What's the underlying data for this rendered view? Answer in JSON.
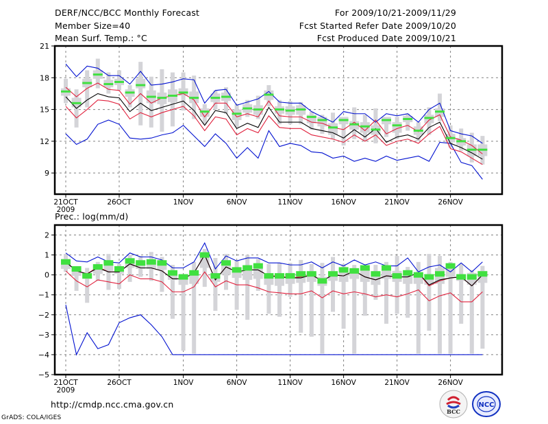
{
  "header": {
    "title": "DERF/NCC/BCC Monthly Forecast",
    "member_size": "Member Size=40",
    "variable_top": "Mean Surf. Temp.: °C",
    "period": "For 2009/10/21-2009/11/29",
    "started_date": "Fcst Started Refer Date 2009/10/20",
    "produced_date": "Fcst Produced Date 2009/10/21"
  },
  "footer": {
    "url": "http://cmdp.ncc.cma.gov.cn",
    "credit": "GrADS: COLA/IGES",
    "logos": [
      "BCC",
      "NCC"
    ]
  },
  "colors": {
    "mean": "#000000",
    "inner_band": "#e0203c",
    "outer_band": "#0010d0",
    "box": "#d4d4d8",
    "marker": "#40e040",
    "grid": "#808080"
  },
  "chart_data": [
    {
      "type": "line",
      "title": "Mean Surf. Temp.: °C",
      "xlabel": "",
      "ylabel": "°C",
      "ylim": [
        7,
        21
      ],
      "yticks": [
        9,
        12,
        15,
        18,
        21
      ],
      "xticks": [
        {
          "day": 0,
          "label": "21OCT",
          "sublabel": "2009"
        },
        {
          "day": 5,
          "label": "26OCT"
        },
        {
          "day": 11,
          "label": "1NOV"
        },
        {
          "day": 16,
          "label": "6NOV"
        },
        {
          "day": 21,
          "label": "11NOV"
        },
        {
          "day": 26,
          "label": "16NOV"
        },
        {
          "day": 31,
          "label": "21NOV"
        },
        {
          "day": 36,
          "label": "26NOV"
        }
      ],
      "grid": true,
      "x_days": 40,
      "series": [
        {
          "name": "max",
          "role": "outer_band",
          "values": [
            19.3,
            18.1,
            19.1,
            18.9,
            18.2,
            18.2,
            17.4,
            18.6,
            17.3,
            17.4,
            17.6,
            17.9,
            17.8,
            15.6,
            16.8,
            16.9,
            15.4,
            15.7,
            16.0,
            16.7,
            15.7,
            15.6,
            15.6,
            14.8,
            14.3,
            13.8,
            14.8,
            14.6,
            14.6,
            13.8,
            14.6,
            14.4,
            14.6,
            13.8,
            15.0,
            15.6,
            13.0,
            12.7,
            12.5,
            11.8
          ]
        },
        {
          "name": "upper",
          "role": "inner_band",
          "values": [
            17.1,
            16.2,
            17.0,
            17.5,
            16.9,
            16.8,
            15.5,
            16.5,
            15.6,
            16.1,
            16.3,
            16.5,
            15.9,
            14.3,
            15.6,
            15.6,
            14.3,
            14.6,
            14.3,
            15.8,
            14.4,
            14.3,
            14.3,
            13.8,
            13.7,
            13.3,
            13.1,
            13.8,
            13.0,
            14.0,
            12.7,
            13.2,
            13.5,
            12.9,
            14.0,
            14.5,
            12.4,
            12.1,
            11.6,
            10.8
          ]
        },
        {
          "name": "mean",
          "role": "mean",
          "values": [
            16.2,
            15.1,
            15.9,
            16.5,
            16.2,
            16.1,
            14.8,
            15.6,
            14.9,
            15.2,
            15.5,
            15.8,
            14.9,
            13.5,
            14.9,
            14.7,
            13.2,
            13.7,
            13.3,
            15.2,
            13.8,
            13.8,
            13.8,
            13.2,
            13.0,
            12.8,
            12.3,
            13.1,
            12.4,
            13.2,
            11.9,
            12.4,
            12.6,
            12.2,
            13.3,
            13.8,
            11.8,
            11.4,
            10.9,
            10.3
          ]
        },
        {
          "name": "lower",
          "role": "inner_band",
          "values": [
            15.3,
            14.2,
            15.0,
            15.9,
            15.8,
            15.5,
            14.1,
            14.7,
            14.3,
            14.7,
            15.0,
            15.3,
            14.4,
            13.0,
            14.3,
            14.1,
            12.6,
            13.2,
            12.8,
            14.4,
            13.3,
            13.2,
            13.2,
            12.6,
            12.4,
            12.2,
            11.9,
            12.6,
            12.0,
            12.6,
            11.6,
            12.0,
            12.2,
            11.8,
            12.7,
            13.4,
            11.3,
            11.0,
            10.4,
            9.8
          ]
        },
        {
          "name": "min",
          "role": "outer_band",
          "values": [
            12.7,
            11.7,
            12.2,
            13.6,
            14.0,
            13.6,
            12.3,
            12.2,
            12.3,
            12.6,
            12.8,
            13.5,
            12.5,
            11.5,
            12.7,
            11.8,
            10.4,
            11.4,
            10.4,
            13.0,
            11.5,
            11.8,
            11.6,
            11.0,
            10.9,
            10.4,
            10.6,
            10.1,
            10.4,
            10.1,
            10.6,
            10.2,
            10.4,
            10.6,
            10.1,
            11.9,
            11.8,
            10.0,
            9.7,
            8.4
          ]
        },
        {
          "name": "marker",
          "role": "marker",
          "values": [
            16.7,
            15.6,
            17.5,
            18.3,
            17.4,
            17.6,
            16.6,
            17.3,
            16.2,
            16.1,
            16.3,
            16.6,
            16.1,
            14.8,
            16.1,
            16.2,
            14.6,
            15.1,
            15.0,
            16.4,
            15.0,
            14.9,
            15.0,
            14.3,
            14.0,
            13.3,
            14.0,
            13.6,
            13.4,
            13.1,
            14.0,
            13.5,
            14.1,
            13.0,
            14.2,
            14.8,
            12.3,
            12.0,
            11.2,
            11.2
          ]
        },
        {
          "name": "box_high",
          "role": "box",
          "values": [
            17.9,
            16.9,
            18.7,
            19.8,
            18.5,
            18.7,
            17.3,
            19.5,
            18.1,
            18.8,
            18.5,
            18.5,
            18.2,
            15.5,
            16.8,
            17.1,
            15.5,
            15.9,
            16.3,
            17.3,
            15.9,
            15.8,
            15.7,
            14.8,
            14.5,
            14.7,
            14.0,
            15.2,
            14.5,
            15.1,
            13.9,
            14.3,
            14.6,
            13.8,
            15.2,
            16.5,
            13.5,
            13.2,
            12.8,
            12.5
          ]
        },
        {
          "name": "box_q3",
          "role": "box",
          "values": [
            17.0,
            16.1,
            17.9,
            18.7,
            17.8,
            17.9,
            16.9,
            17.9,
            16.8,
            16.6,
            16.9,
            17.0,
            16.7,
            15.1,
            16.5,
            16.6,
            15.0,
            15.5,
            15.4,
            16.8,
            15.3,
            15.3,
            15.4,
            14.5,
            14.3,
            13.7,
            14.3,
            13.9,
            13.8,
            13.5,
            14.3,
            13.8,
            14.4,
            13.4,
            14.5,
            15.1,
            12.7,
            12.3,
            11.7,
            11.7
          ]
        },
        {
          "name": "box_q1",
          "role": "box",
          "values": [
            16.3,
            15.2,
            17.1,
            17.9,
            17.1,
            17.3,
            16.2,
            17.0,
            15.6,
            15.5,
            15.7,
            16.3,
            15.6,
            14.3,
            15.7,
            15.8,
            14.0,
            14.7,
            14.5,
            15.9,
            14.6,
            14.5,
            14.5,
            13.7,
            13.4,
            12.6,
            13.6,
            13.1,
            12.8,
            12.6,
            13.6,
            12.8,
            13.8,
            12.6,
            13.7,
            14.3,
            11.9,
            11.6,
            10.6,
            10.6
          ]
        },
        {
          "name": "box_low",
          "role": "box",
          "values": [
            15.6,
            13.3,
            15.2,
            17.0,
            16.5,
            16.8,
            15.2,
            13.5,
            13.3,
            12.9,
            13.4,
            14.9,
            14.1,
            13.6,
            15.0,
            14.6,
            13.3,
            14.3,
            14.1,
            15.3,
            13.6,
            13.6,
            13.6,
            13.1,
            12.7,
            12.2,
            11.6,
            12.2,
            12.0,
            11.8,
            12.4,
            12.2,
            13.0,
            12.0,
            12.6,
            13.9,
            11.4,
            11.1,
            10.0,
            9.8
          ]
        }
      ]
    },
    {
      "type": "line",
      "title": "Prec.: log(mm/d)",
      "xlabel": "",
      "ylabel": "log(mm/d)",
      "ylim": [
        -5,
        2.5
      ],
      "yticks": [
        -5,
        -4,
        -3,
        -2,
        -1,
        0,
        1,
        2
      ],
      "xticks": [
        {
          "day": 0,
          "label": "21OCT",
          "sublabel": "2009"
        },
        {
          "day": 5,
          "label": "26OCT"
        },
        {
          "day": 11,
          "label": "1NOV"
        },
        {
          "day": 16,
          "label": "6NOV"
        },
        {
          "day": 21,
          "label": "11NOV"
        },
        {
          "day": 26,
          "label": "16NOV"
        },
        {
          "day": 31,
          "label": "21NOV"
        },
        {
          "day": 36,
          "label": "26NOV"
        }
      ],
      "grid": true,
      "x_days": 40,
      "series": [
        {
          "name": "max",
          "role": "outer_band",
          "values": [
            1.1,
            0.7,
            0.65,
            0.9,
            0.65,
            0.6,
            1.1,
            0.9,
            0.9,
            0.75,
            0.35,
            0.35,
            0.65,
            1.6,
            0.3,
            0.95,
            0.7,
            0.85,
            0.85,
            0.6,
            0.6,
            0.5,
            0.5,
            0.65,
            0.35,
            0.65,
            0.45,
            0.75,
            0.5,
            0.65,
            0.45,
            0.45,
            0.85,
            0.15,
            0.4,
            0.5,
            0.15,
            0.6,
            0.15,
            0.65
          ]
        },
        {
          "name": "upper",
          "role": "mean",
          "values": [
            0.65,
            0.2,
            0.05,
            0.4,
            0.15,
            0.15,
            0.55,
            0.35,
            0.35,
            0.2,
            -0.2,
            -0.2,
            0.1,
            1.0,
            -0.25,
            0.4,
            0.15,
            0.25,
            0.25,
            -0.05,
            -0.05,
            -0.15,
            -0.1,
            0.0,
            -0.3,
            0.0,
            -0.05,
            0.2,
            -0.1,
            -0.25,
            -0.05,
            -0.1,
            -0.1,
            0.1,
            -0.55,
            -0.3,
            -0.15,
            -0.1,
            -0.55,
            0.0
          ]
        },
        {
          "name": "mean",
          "role": "mean",
          "values": [
            0.65,
            0.2,
            0.05,
            0.35,
            0.15,
            0.15,
            0.55,
            0.35,
            0.35,
            0.2,
            -0.2,
            -0.2,
            0.1,
            1.0,
            -0.25,
            0.4,
            0.15,
            0.25,
            0.25,
            -0.05,
            -0.1,
            -0.15,
            -0.15,
            0.0,
            -0.3,
            0.0,
            -0.05,
            0.2,
            -0.1,
            -0.25,
            -0.05,
            -0.1,
            -0.1,
            0.1,
            -0.5,
            -0.25,
            -0.15,
            -0.1,
            -0.55,
            0.0
          ]
        },
        {
          "name": "lower",
          "role": "inner_band",
          "values": [
            0.2,
            -0.3,
            -0.6,
            -0.25,
            -0.35,
            -0.45,
            0.0,
            -0.2,
            -0.2,
            -0.35,
            -0.85,
            -0.85,
            -0.6,
            0.15,
            -0.6,
            -0.3,
            -0.5,
            -0.5,
            -0.65,
            -0.85,
            -0.9,
            -0.95,
            -0.95,
            -0.8,
            -1.15,
            -0.8,
            -0.95,
            -0.85,
            -0.95,
            -1.1,
            -1.0,
            -1.1,
            -0.95,
            -0.75,
            -1.3,
            -1.05,
            -0.9,
            -1.35,
            -1.35,
            -0.85
          ]
        },
        {
          "name": "min",
          "role": "outer_band",
          "values": [
            -1.5,
            -4.0,
            -2.9,
            -3.7,
            -3.5,
            -2.4,
            -2.15,
            -2.0,
            -2.5,
            -3.1,
            -4.0,
            -4.0,
            -4.0,
            -4.0,
            -4.0,
            -4.0,
            -4.0,
            -4.0,
            -4.0,
            -4.0,
            -4.0,
            -4.0,
            -4.0,
            -4.0,
            -4.0,
            -4.0,
            -4.0,
            -4.0,
            -4.0,
            -4.0,
            -4.0,
            -4.0,
            -4.0,
            -4.0,
            -4.0,
            -4.0,
            -4.0,
            -4.0,
            -4.0,
            -4.0
          ]
        },
        {
          "name": "marker",
          "role": "marker",
          "values": [
            0.65,
            0.3,
            -0.05,
            0.4,
            0.6,
            0.3,
            0.7,
            0.6,
            0.65,
            0.6,
            0.1,
            -0.1,
            0.1,
            1.0,
            -0.05,
            0.6,
            0.25,
            0.35,
            0.45,
            -0.05,
            -0.05,
            -0.05,
            0.05,
            0.05,
            -0.3,
            0.05,
            0.25,
            0.2,
            0.35,
            0.05,
            0.35,
            -0.05,
            0.1,
            0.0,
            -0.1,
            0.05,
            0.45,
            -0.1,
            -0.1,
            0.05
          ]
        },
        {
          "name": "box_high",
          "role": "box",
          "values": [
            1.05,
            0.4,
            0.35,
            0.65,
            1.05,
            0.55,
            1.0,
            0.95,
            1.15,
            0.9,
            0.5,
            -0.1,
            0.65,
            1.3,
            0.85,
            1.05,
            0.75,
            1.0,
            0.8,
            0.55,
            0.6,
            0.6,
            0.75,
            0.55,
            0.6,
            0.9,
            0.55,
            0.5,
            0.45,
            0.5,
            0.65,
            0.95,
            0.4,
            0.65,
            1.05,
            0.95,
            0.65,
            0.55,
            0.25,
            0.45
          ]
        },
        {
          "name": "box_q3",
          "role": "box",
          "values": [
            0.8,
            0.35,
            0.1,
            0.45,
            0.65,
            0.35,
            0.75,
            0.65,
            0.7,
            0.65,
            0.15,
            0.0,
            0.15,
            1.05,
            0.05,
            0.6,
            0.3,
            0.4,
            0.45,
            0.05,
            0.0,
            0.1,
            0.05,
            0.15,
            -0.1,
            0.1,
            0.35,
            0.3,
            0.35,
            0.15,
            0.35,
            0.2,
            0.1,
            0.1,
            0.0,
            0.35,
            0.45,
            0.0,
            0.1,
            0.2
          ]
        },
        {
          "name": "box_q1",
          "role": "box",
          "values": [
            0.3,
            -0.05,
            -0.2,
            0.05,
            0.2,
            0.05,
            0.35,
            0.3,
            0.3,
            0.25,
            -0.25,
            -0.5,
            -0.45,
            0.35,
            -0.35,
            0.0,
            -0.15,
            -0.25,
            -0.2,
            -0.5,
            -0.55,
            -0.45,
            -0.4,
            -0.35,
            -0.55,
            -0.3,
            -0.35,
            -0.2,
            -0.35,
            -0.5,
            -0.2,
            -0.35,
            -0.45,
            -0.45,
            -0.5,
            -0.45,
            -0.1,
            -0.3,
            -0.5,
            -0.4
          ]
        },
        {
          "name": "box_low",
          "role": "box",
          "values": [
            0.15,
            -0.8,
            -1.4,
            -0.3,
            -0.75,
            -0.7,
            -0.35,
            -0.1,
            -0.3,
            -0.85,
            -2.2,
            -3.8,
            -3.95,
            -0.6,
            -1.8,
            -0.75,
            -1.75,
            -2.25,
            -0.8,
            -1.95,
            -2.1,
            -1.1,
            -2.9,
            -3.1,
            -3.95,
            -1.85,
            -2.7,
            -3.95,
            -2.05,
            -1.25,
            -2.45,
            -1.95,
            -2.15,
            -3.95,
            -2.8,
            -3.95,
            -3.95,
            -2.45,
            -3.95,
            -3.7
          ]
        }
      ]
    }
  ]
}
